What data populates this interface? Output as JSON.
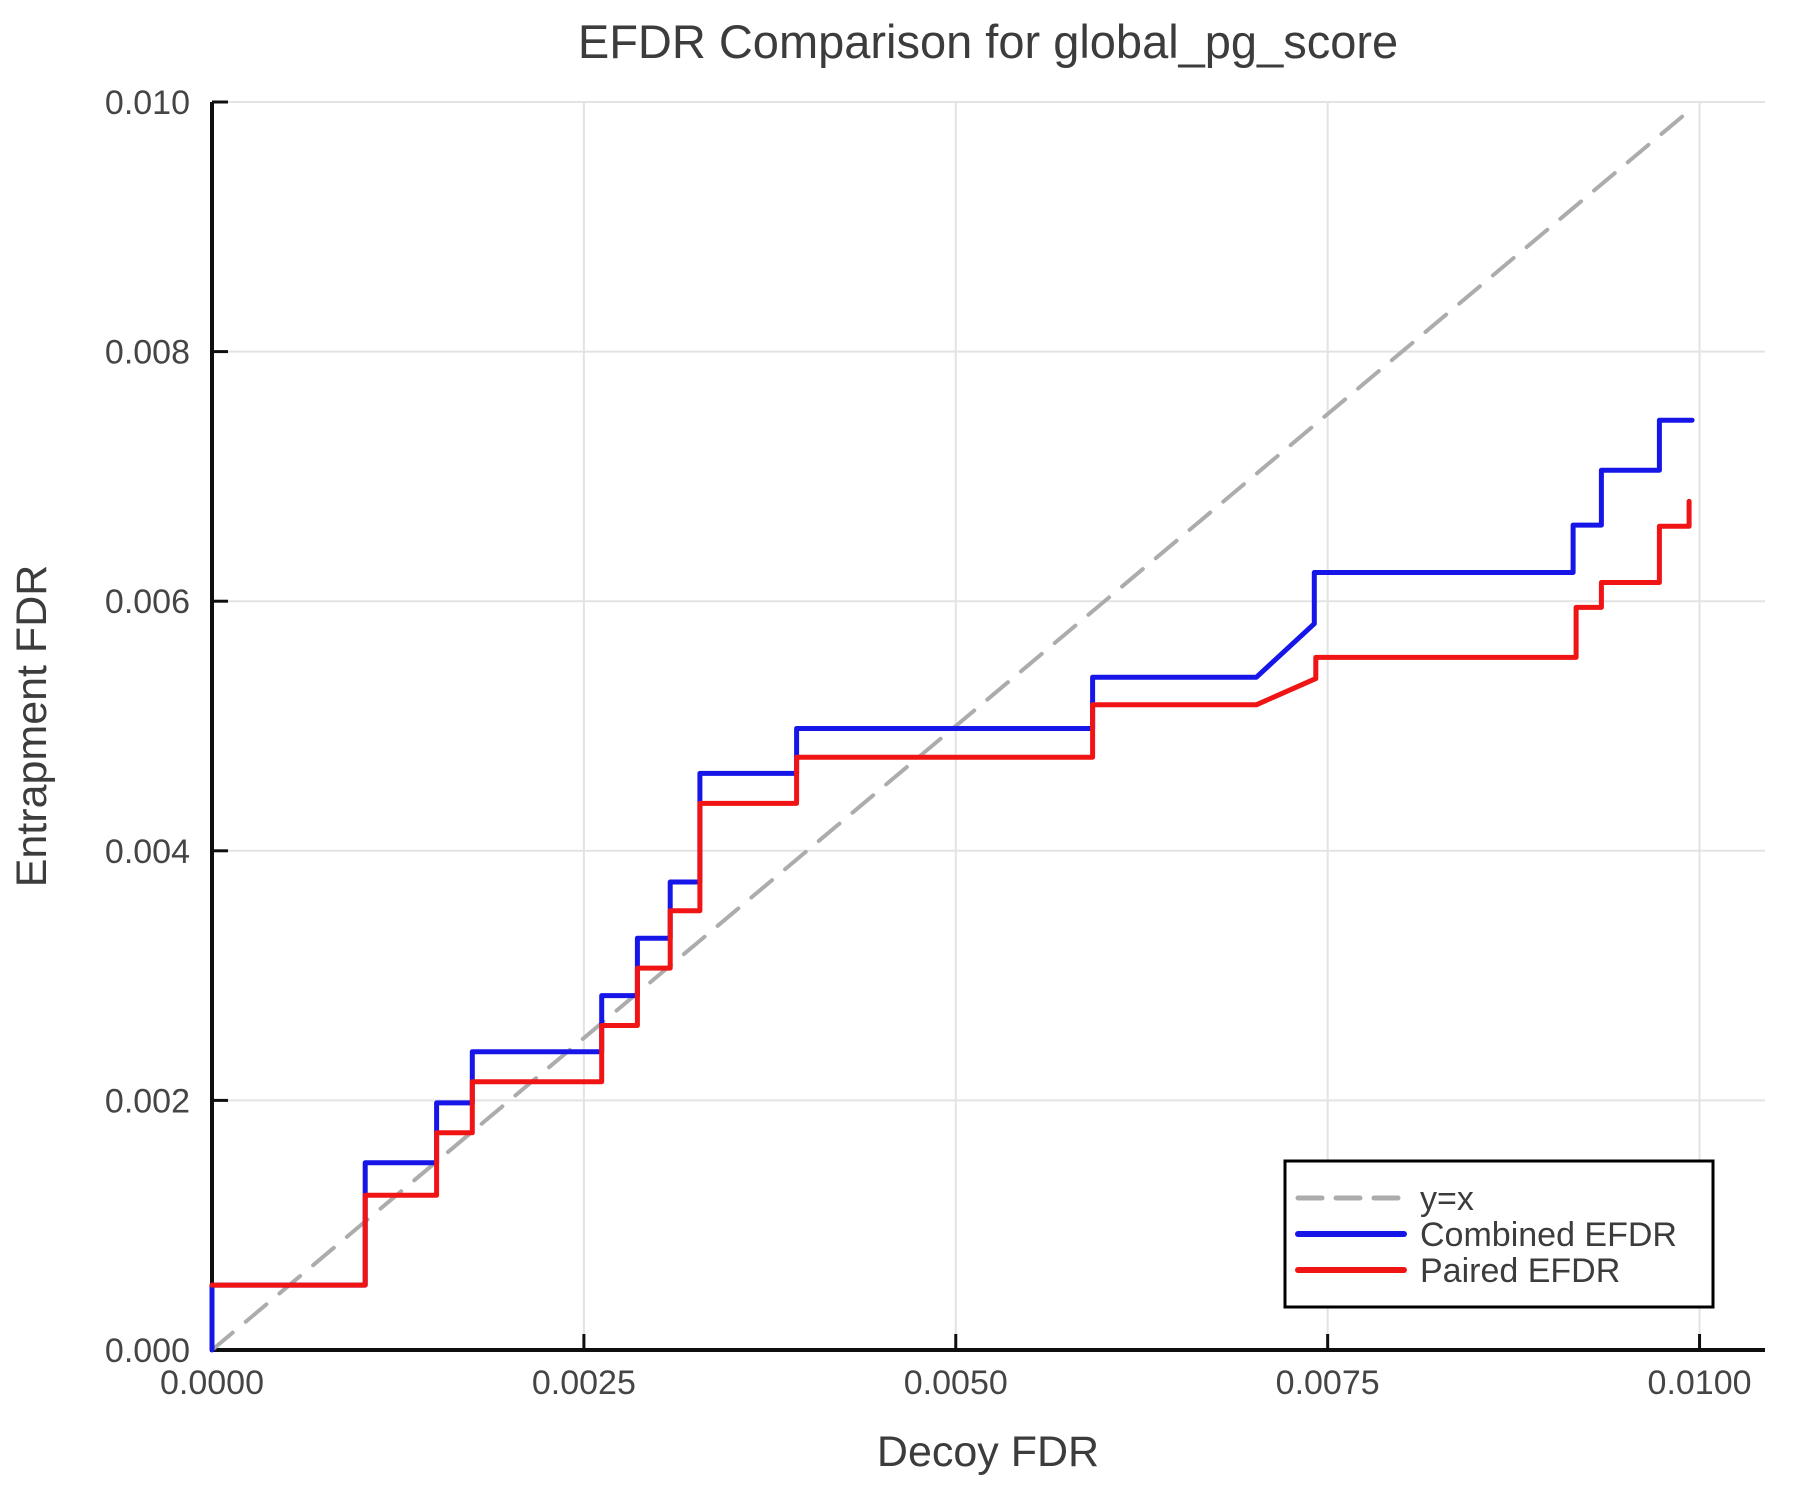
{
  "chart_data": {
    "type": "line",
    "title": "EFDR Comparison for global_pg_score",
    "xlabel": "Decoy FDR",
    "ylabel": "Entrapment FDR",
    "xlim": [
      0,
      0.01044
    ],
    "ylim": [
      0,
      0.01
    ],
    "grid": true,
    "xticks": {
      "values": [
        0,
        0.0025,
        0.005,
        0.0075,
        0.01
      ],
      "labels": [
        "0.0000",
        "0.0025",
        "0.0050",
        "0.0075",
        "0.0100"
      ]
    },
    "yticks": {
      "values": [
        0,
        0.002,
        0.004,
        0.006,
        0.008,
        0.01
      ],
      "labels": [
        "0.000",
        "0.002",
        "0.004",
        "0.006",
        "0.008",
        "0.010"
      ]
    },
    "legend": {
      "position": "bottom-right",
      "border_color": "#000000",
      "background": "#ffffff"
    },
    "series": [
      {
        "name": "y=x",
        "color": "#acacac",
        "style": "dashed",
        "width": 4,
        "points": [
          [
            0,
            0
          ],
          [
            0.00996,
            0.00996
          ]
        ]
      },
      {
        "name": "Combined EFDR",
        "color": "#1616e8",
        "style": "solid",
        "width": 5,
        "points": [
          [
            0,
            0
          ],
          [
            0,
            0.00052
          ],
          [
            0.00103,
            0.00052
          ],
          [
            0.00103,
            0.0015
          ],
          [
            0.00151,
            0.0015
          ],
          [
            0.00151,
            0.00198
          ],
          [
            0.00175,
            0.00198
          ],
          [
            0.00175,
            0.00239
          ],
          [
            0.00262,
            0.00239
          ],
          [
            0.00262,
            0.00284
          ],
          [
            0.00286,
            0.00284
          ],
          [
            0.00286,
            0.0033
          ],
          [
            0.00308,
            0.0033
          ],
          [
            0.00308,
            0.00375
          ],
          [
            0.00328,
            0.00375
          ],
          [
            0.00328,
            0.00462
          ],
          [
            0.00393,
            0.00462
          ],
          [
            0.00393,
            0.00498
          ],
          [
            0.00592,
            0.00498
          ],
          [
            0.00592,
            0.00539
          ],
          [
            0.00702,
            0.00539
          ],
          [
            0.00741,
            0.00582
          ],
          [
            0.00741,
            0.00623
          ],
          [
            0.00915,
            0.00623
          ],
          [
            0.00915,
            0.00661
          ],
          [
            0.00934,
            0.00661
          ],
          [
            0.00934,
            0.00705
          ],
          [
            0.00973,
            0.00705
          ],
          [
            0.00973,
            0.00745
          ],
          [
            0.00995,
            0.00745
          ]
        ]
      },
      {
        "name": "Paired EFDR",
        "color": "#f01414",
        "style": "solid",
        "width": 5,
        "points": [
          [
            0,
            0.00052
          ],
          [
            0.00103,
            0.00052
          ],
          [
            0.00103,
            0.00124
          ],
          [
            0.00151,
            0.00124
          ],
          [
            0.00151,
            0.00174
          ],
          [
            0.00175,
            0.00174
          ],
          [
            0.00175,
            0.00215
          ],
          [
            0.00262,
            0.00215
          ],
          [
            0.00262,
            0.0026
          ],
          [
            0.00286,
            0.0026
          ],
          [
            0.00286,
            0.00306
          ],
          [
            0.00308,
            0.00306
          ],
          [
            0.00308,
            0.00352
          ],
          [
            0.00328,
            0.00352
          ],
          [
            0.00328,
            0.00438
          ],
          [
            0.00393,
            0.00438
          ],
          [
            0.00393,
            0.00475
          ],
          [
            0.00592,
            0.00475
          ],
          [
            0.00592,
            0.00517
          ],
          [
            0.00702,
            0.00517
          ],
          [
            0.00742,
            0.00538
          ],
          [
            0.00742,
            0.00555
          ],
          [
            0.00917,
            0.00555
          ],
          [
            0.00917,
            0.00595
          ],
          [
            0.00934,
            0.00595
          ],
          [
            0.00934,
            0.00615
          ],
          [
            0.00973,
            0.00615
          ],
          [
            0.00973,
            0.0066
          ],
          [
            0.00993,
            0.0066
          ],
          [
            0.00993,
            0.0068
          ]
        ]
      }
    ],
    "colors": {
      "grid": "#e3e3e3",
      "axis": "#0f0f0f",
      "text": "#3c3c3c",
      "tick_text": "#454545"
    }
  }
}
